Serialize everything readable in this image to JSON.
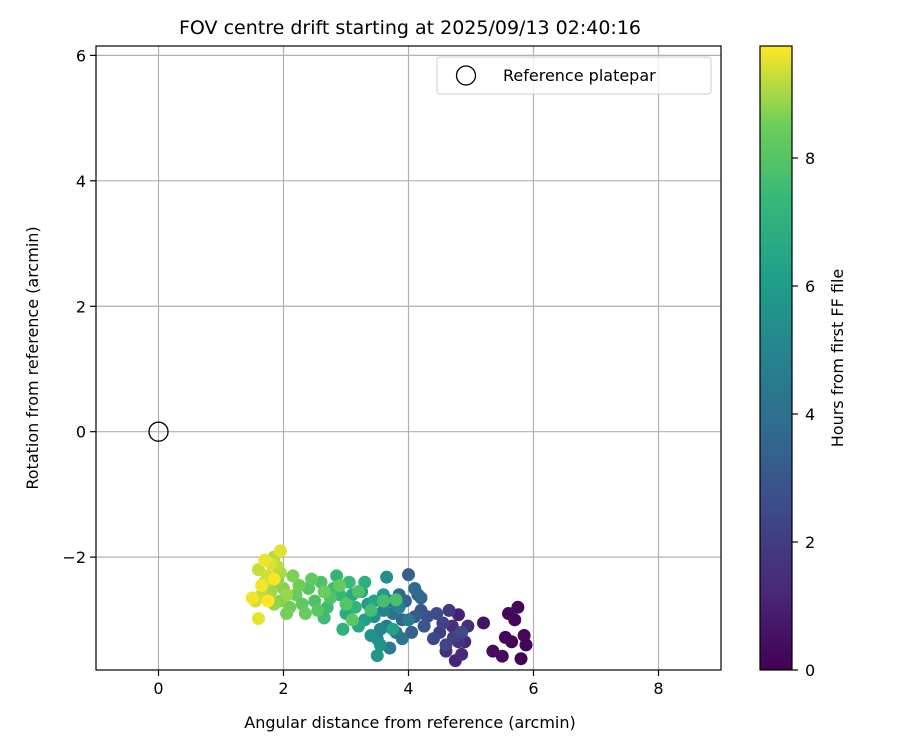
{
  "chart_data": {
    "type": "scatter",
    "title": "FOV centre drift starting at 2025/09/13 02:40:16",
    "xlabel": "Angular distance from reference (arcmin)",
    "ylabel": "Rotation from reference (arcmin)",
    "xlim": [
      -1.0,
      9.0
    ],
    "ylim": [
      -3.8,
      6.15
    ],
    "xticks": [
      0,
      2,
      4,
      6,
      8
    ],
    "yticks": [
      -2,
      0,
      2,
      4,
      6
    ],
    "grid": true,
    "legend": {
      "placement": "top-right",
      "entries": [
        "Reference platepar"
      ]
    },
    "reference": {
      "label": "Reference platepar",
      "x": 0,
      "y": 0,
      "marker": "open-circle"
    },
    "colorbar": {
      "label": "Hours from first FF file",
      "colormap": "viridis",
      "range": [
        0,
        9.75
      ],
      "ticks": [
        0,
        2,
        4,
        6,
        8
      ]
    },
    "points": [
      {
        "x": 5.65,
        "y": -3.35,
        "c": 0.05
      },
      {
        "x": 5.8,
        "y": -3.62,
        "c": 0.05
      },
      {
        "x": 5.7,
        "y": -3.0,
        "c": 0.1
      },
      {
        "x": 5.88,
        "y": -3.4,
        "c": 0.1
      },
      {
        "x": 5.55,
        "y": -3.28,
        "c": 0.15
      },
      {
        "x": 5.75,
        "y": -2.8,
        "c": 0.2
      },
      {
        "x": 5.85,
        "y": -3.25,
        "c": 0.2
      },
      {
        "x": 5.6,
        "y": -2.9,
        "c": 0.25
      },
      {
        "x": 5.5,
        "y": -3.58,
        "c": 0.3
      },
      {
        "x": 5.35,
        "y": -3.5,
        "c": 0.35
      },
      {
        "x": 5.2,
        "y": -3.05,
        "c": 0.6
      },
      {
        "x": 4.8,
        "y": -2.92,
        "c": 1.0
      },
      {
        "x": 4.75,
        "y": -3.65,
        "c": 1.1
      },
      {
        "x": 4.9,
        "y": -3.35,
        "c": 1.2
      },
      {
        "x": 4.85,
        "y": -3.55,
        "c": 1.3
      },
      {
        "x": 4.7,
        "y": -3.1,
        "c": 1.4
      },
      {
        "x": 4.95,
        "y": -3.1,
        "c": 1.5
      },
      {
        "x": 4.6,
        "y": -3.5,
        "c": 1.6
      },
      {
        "x": 4.8,
        "y": -3.35,
        "c": 1.7
      },
      {
        "x": 4.65,
        "y": -2.85,
        "c": 1.9
      },
      {
        "x": 4.5,
        "y": -3.2,
        "c": 2.0
      },
      {
        "x": 4.72,
        "y": -3.28,
        "c": 2.1
      },
      {
        "x": 4.55,
        "y": -3.05,
        "c": 2.2
      },
      {
        "x": 4.6,
        "y": -3.4,
        "c": 2.3
      },
      {
        "x": 4.4,
        "y": -3.3,
        "c": 2.4
      },
      {
        "x": 4.85,
        "y": -3.2,
        "c": 2.5
      },
      {
        "x": 4.45,
        "y": -2.9,
        "c": 2.6
      },
      {
        "x": 4.3,
        "y": -2.95,
        "c": 2.7
      },
      {
        "x": 4.2,
        "y": -2.85,
        "c": 2.9
      },
      {
        "x": 4.25,
        "y": -3.1,
        "c": 3.0
      },
      {
        "x": 4.15,
        "y": -2.6,
        "c": 3.1
      },
      {
        "x": 4.1,
        "y": -2.95,
        "c": 3.2
      },
      {
        "x": 4.0,
        "y": -2.28,
        "c": 3.3
      },
      {
        "x": 4.05,
        "y": -3.2,
        "c": 3.4
      },
      {
        "x": 3.95,
        "y": -2.7,
        "c": 3.5
      },
      {
        "x": 3.9,
        "y": -3.0,
        "c": 3.6
      },
      {
        "x": 4.2,
        "y": -2.65,
        "c": 3.7
      },
      {
        "x": 3.85,
        "y": -2.6,
        "c": 3.8
      },
      {
        "x": 4.1,
        "y": -2.5,
        "c": 3.9
      },
      {
        "x": 3.8,
        "y": -3.2,
        "c": 4.1
      },
      {
        "x": 3.75,
        "y": -2.9,
        "c": 4.2
      },
      {
        "x": 3.9,
        "y": -3.3,
        "c": 4.3
      },
      {
        "x": 3.7,
        "y": -2.7,
        "c": 4.4
      },
      {
        "x": 3.65,
        "y": -3.1,
        "c": 4.5
      },
      {
        "x": 4.0,
        "y": -3.0,
        "c": 4.6
      },
      {
        "x": 3.7,
        "y": -3.45,
        "c": 4.7
      },
      {
        "x": 3.6,
        "y": -2.85,
        "c": 4.8
      },
      {
        "x": 3.85,
        "y": -2.8,
        "c": 4.9
      },
      {
        "x": 3.55,
        "y": -3.15,
        "c": 5.0
      },
      {
        "x": 3.5,
        "y": -3.3,
        "c": 5.2
      },
      {
        "x": 3.65,
        "y": -2.32,
        "c": 5.4
      },
      {
        "x": 3.45,
        "y": -2.95,
        "c": 5.5
      },
      {
        "x": 3.4,
        "y": -3.25,
        "c": 5.6
      },
      {
        "x": 3.55,
        "y": -3.4,
        "c": 5.7
      },
      {
        "x": 3.5,
        "y": -3.57,
        "c": 5.8
      },
      {
        "x": 3.35,
        "y": -2.75,
        "c": 6.0
      },
      {
        "x": 3.6,
        "y": -2.6,
        "c": 6.1
      },
      {
        "x": 3.3,
        "y": -3.0,
        "c": 6.2
      },
      {
        "x": 3.75,
        "y": -3.15,
        "c": 6.3
      },
      {
        "x": 3.25,
        "y": -2.55,
        "c": 6.4
      },
      {
        "x": 3.45,
        "y": -2.7,
        "c": 6.5
      },
      {
        "x": 3.2,
        "y": -3.1,
        "c": 6.6
      },
      {
        "x": 3.1,
        "y": -2.6,
        "c": 6.7
      },
      {
        "x": 3.0,
        "y": -2.9,
        "c": 6.8
      },
      {
        "x": 3.3,
        "y": -2.4,
        "c": 6.9
      },
      {
        "x": 2.95,
        "y": -3.15,
        "c": 7.0
      },
      {
        "x": 3.15,
        "y": -2.8,
        "c": 7.1
      },
      {
        "x": 2.85,
        "y": -2.3,
        "c": 7.2
      },
      {
        "x": 2.9,
        "y": -2.6,
        "c": 7.3
      },
      {
        "x": 3.05,
        "y": -2.4,
        "c": 7.4
      },
      {
        "x": 2.7,
        "y": -2.8,
        "c": 7.5
      },
      {
        "x": 2.65,
        "y": -2.97,
        "c": 7.55
      },
      {
        "x": 2.8,
        "y": -2.5,
        "c": 7.6
      },
      {
        "x": 3.4,
        "y": -2.85,
        "c": 7.65
      },
      {
        "x": 3.6,
        "y": -2.7,
        "c": 7.7
      },
      {
        "x": 3.8,
        "y": -2.68,
        "c": 7.75
      },
      {
        "x": 2.6,
        "y": -2.4,
        "c": 7.8
      },
      {
        "x": 2.5,
        "y": -2.7,
        "c": 7.85
      },
      {
        "x": 3.2,
        "y": -2.55,
        "c": 7.9
      },
      {
        "x": 2.75,
        "y": -2.65,
        "c": 7.95
      },
      {
        "x": 3.0,
        "y": -2.75,
        "c": 8.0
      },
      {
        "x": 2.4,
        "y": -2.5,
        "c": 8.05
      },
      {
        "x": 2.55,
        "y": -2.85,
        "c": 8.1
      },
      {
        "x": 3.1,
        "y": -3.0,
        "c": 8.15
      },
      {
        "x": 2.3,
        "y": -2.75,
        "c": 8.2
      },
      {
        "x": 2.45,
        "y": -2.35,
        "c": 8.25
      },
      {
        "x": 2.9,
        "y": -2.45,
        "c": 8.3
      },
      {
        "x": 2.2,
        "y": -2.6,
        "c": 8.35
      },
      {
        "x": 2.35,
        "y": -2.9,
        "c": 8.4
      },
      {
        "x": 2.65,
        "y": -2.55,
        "c": 8.45
      },
      {
        "x": 2.1,
        "y": -2.8,
        "c": 8.5
      },
      {
        "x": 2.25,
        "y": -2.45,
        "c": 8.55
      },
      {
        "x": 2.05,
        "y": -2.9,
        "c": 8.6
      },
      {
        "x": 2.15,
        "y": -2.3,
        "c": 8.65
      },
      {
        "x": 1.95,
        "y": -2.7,
        "c": 8.7
      },
      {
        "x": 2.0,
        "y": -2.5,
        "c": 8.75
      },
      {
        "x": 1.9,
        "y": -2.4,
        "c": 8.8
      },
      {
        "x": 1.85,
        "y": -2.75,
        "c": 8.85
      },
      {
        "x": 2.05,
        "y": -2.6,
        "c": 8.9
      },
      {
        "x": 1.8,
        "y": -2.55,
        "c": 8.95
      },
      {
        "x": 1.95,
        "y": -2.25,
        "c": 9.0
      },
      {
        "x": 1.75,
        "y": -2.65,
        "c": 9.05
      },
      {
        "x": 1.7,
        "y": -2.4,
        "c": 9.1
      },
      {
        "x": 1.85,
        "y": -2.0,
        "c": 9.15
      },
      {
        "x": 1.9,
        "y": -2.15,
        "c": 9.2
      },
      {
        "x": 1.65,
        "y": -2.6,
        "c": 9.25
      },
      {
        "x": 1.6,
        "y": -2.2,
        "c": 9.3
      },
      {
        "x": 1.75,
        "y": -2.3,
        "c": 9.35
      },
      {
        "x": 1.55,
        "y": -2.7,
        "c": 9.4
      },
      {
        "x": 1.8,
        "y": -2.1,
        "c": 9.45
      },
      {
        "x": 1.95,
        "y": -1.9,
        "c": 9.5
      },
      {
        "x": 1.6,
        "y": -2.98,
        "c": 9.55
      },
      {
        "x": 1.7,
        "y": -2.05,
        "c": 9.6
      },
      {
        "x": 1.5,
        "y": -2.65,
        "c": 9.65
      },
      {
        "x": 1.65,
        "y": -2.45,
        "c": 9.7
      },
      {
        "x": 1.85,
        "y": -2.35,
        "c": 9.7
      },
      {
        "x": 1.75,
        "y": -2.7,
        "c": 9.75
      }
    ]
  }
}
